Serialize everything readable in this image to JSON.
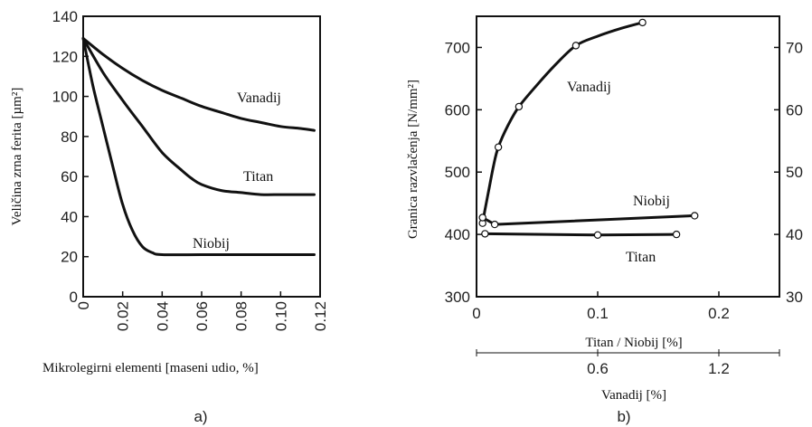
{
  "chart_data": [
    {
      "type": "line",
      "panel_label": "a)",
      "xlabel": "Mikrolegirni elementi [maseni udio, %]",
      "ylabel": "Veličina zrna ferita [µm²]",
      "xlim": [
        0,
        0.12
      ],
      "ylim": [
        0,
        140
      ],
      "xticks": [
        "0",
        "0.02",
        "0.04",
        "0.06",
        "0.08",
        "0.10",
        "0.12"
      ],
      "yticks": [
        "0",
        "20",
        "40",
        "60",
        "80",
        "100",
        "120",
        "140"
      ],
      "grid": false,
      "series": [
        {
          "name": "Vanadij",
          "x": [
            0,
            0.01,
            0.02,
            0.03,
            0.04,
            0.05,
            0.06,
            0.07,
            0.08,
            0.09,
            0.1,
            0.11,
            0.117
          ],
          "y": [
            129,
            121,
            114,
            108,
            103,
            99,
            95,
            92,
            89,
            87,
            85,
            84,
            83
          ]
        },
        {
          "name": "Titan",
          "x": [
            0,
            0.01,
            0.02,
            0.03,
            0.04,
            0.05,
            0.055,
            0.06,
            0.07,
            0.08,
            0.09,
            0.1,
            0.11,
            0.117
          ],
          "y": [
            129,
            112,
            98,
            85,
            72,
            63,
            59,
            56,
            53,
            52,
            51,
            51,
            51,
            51
          ]
        },
        {
          "name": "Niobij",
          "x": [
            0,
            0.005,
            0.01,
            0.015,
            0.02,
            0.025,
            0.03,
            0.035,
            0.04,
            0.06,
            0.08,
            0.1,
            0.117
          ],
          "y": [
            129,
            105,
            85,
            65,
            46,
            33,
            25,
            22,
            21,
            21,
            21,
            21,
            21
          ]
        }
      ]
    },
    {
      "type": "line",
      "panel_label": "b)",
      "ylabel": "Granica razvlačenja [N/mm²]",
      "xlabel": "Titan / Niobij [%]",
      "xlabel2": "Vanadij [%]",
      "xlim": [
        0,
        0.25
      ],
      "ylim": [
        300,
        750
      ],
      "xticks": [
        "0",
        "0.1",
        "0.2"
      ],
      "x2ticks": [
        "0.6",
        "1.2"
      ],
      "yticks": [
        "300",
        "400",
        "500",
        "600",
        "700"
      ],
      "y2ticks": [
        "30",
        "40",
        "50",
        "60",
        "70"
      ],
      "grid": false,
      "series": [
        {
          "name": "Vanadij",
          "x": [
            0.005,
            0.007,
            0.01,
            0.014,
            0.018,
            0.026,
            0.035,
            0.05,
            0.065,
            0.082,
            0.1,
            0.12,
            0.137
          ],
          "y": [
            418,
            440,
            470,
            510,
            540,
            575,
            605,
            640,
            672,
            703,
            718,
            731,
            740
          ],
          "markers_x": [
            0.005,
            0.018,
            0.035,
            0.082,
            0.137
          ],
          "markers_y": [
            418,
            540,
            605,
            703,
            740
          ]
        },
        {
          "name": "Niobij",
          "x": [
            0.005,
            0.015,
            0.18
          ],
          "y": [
            427,
            416,
            430
          ],
          "markers_x": [
            0.005,
            0.015,
            0.18
          ],
          "markers_y": [
            427,
            416,
            430
          ]
        },
        {
          "name": "Titan",
          "x": [
            0.007,
            0.1,
            0.165
          ],
          "y": [
            401,
            399,
            400
          ],
          "markers_x": [
            0.007,
            0.1,
            0.165
          ],
          "markers_y": [
            401,
            399,
            400
          ]
        }
      ]
    }
  ]
}
